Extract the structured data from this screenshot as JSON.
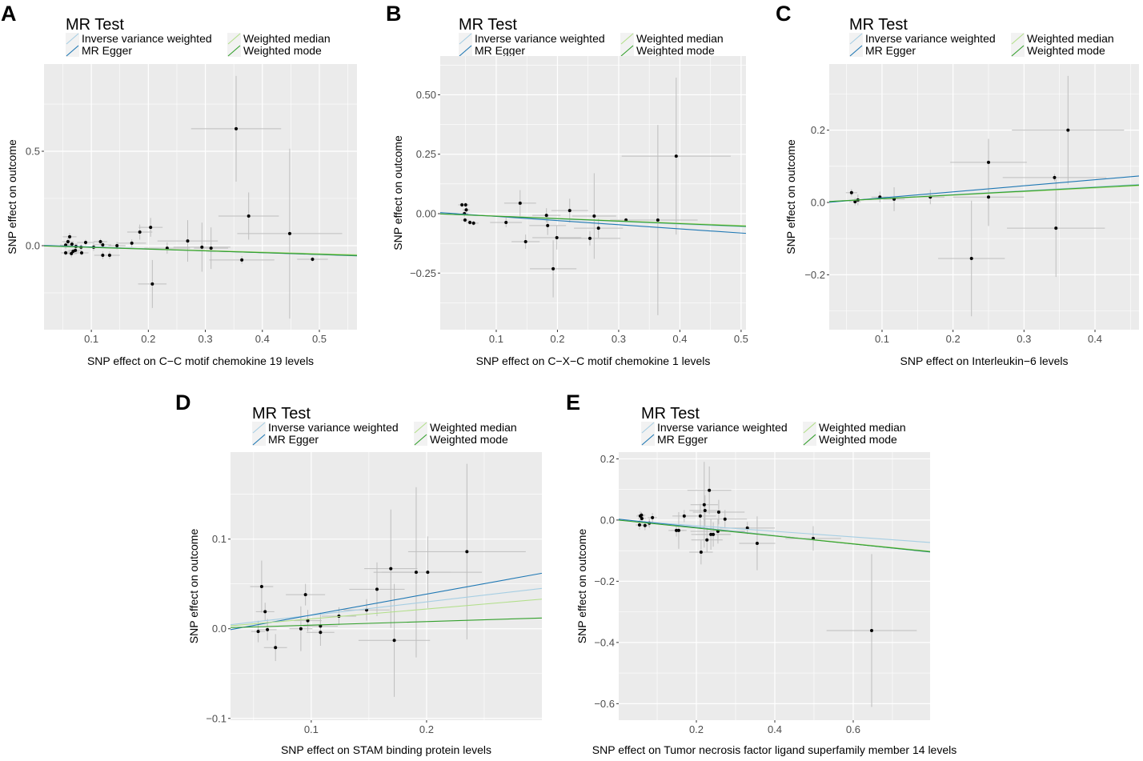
{
  "legend": {
    "title": "MR Test",
    "items": [
      {
        "label": "Inverse variance weighted",
        "color": "#a6cee3"
      },
      {
        "label": "MR Egger",
        "color": "#1f78b4"
      },
      {
        "label": "Weighted median",
        "color": "#b2df8a"
      },
      {
        "label": "Weighted mode",
        "color": "#33a02c"
      }
    ]
  },
  "colors": {
    "points": "#000000",
    "error_bars": "#bebebe",
    "panel_background": "#ebebeb",
    "gridlines": "#ffffff",
    "tick_marks": "#333333"
  },
  "chart_data": [
    {
      "panel_label": "A",
      "type": "scatter",
      "xlabel": "SNP effect on C−C motif chemokine 19 levels",
      "ylabel": "SNP effect on outcome",
      "xlim": [
        0.017,
        0.566
      ],
      "ylim": [
        -0.445,
        0.962
      ],
      "xticks": [
        0.1,
        0.2,
        0.3,
        0.4,
        0.5
      ],
      "xtick_labels": [
        "0.1",
        "0.2",
        "0.3",
        "0.4",
        "0.5"
      ],
      "yticks": [
        0.0,
        0.5
      ],
      "ytick_labels": [
        "0.0",
        "0.5"
      ],
      "points": [
        [
          0.354,
          0.619,
          0.079,
          0.28
        ],
        [
          0.376,
          0.157,
          0.053,
          0.125
        ],
        [
          0.448,
          0.064,
          0.092,
          0.45
        ],
        [
          0.488,
          -0.072,
          0.027,
          0.012
        ],
        [
          0.364,
          -0.076,
          0.057,
          0.02
        ],
        [
          0.207,
          -0.203,
          0.025,
          0.127
        ],
        [
          0.204,
          0.097,
          0.021,
          0.05
        ],
        [
          0.185,
          0.072,
          0.022,
          0.04
        ],
        [
          0.171,
          0.013,
          0.025,
          0.02
        ],
        [
          0.269,
          0.025,
          0.053,
          0.11
        ],
        [
          0.233,
          -0.013,
          0.04,
          0.03
        ],
        [
          0.294,
          -0.008,
          0.05,
          0.13
        ],
        [
          0.31,
          -0.013,
          0.03,
          0.11
        ],
        [
          0.145,
          0.0,
          0.015,
          0.02
        ],
        [
          0.132,
          -0.051,
          0.018,
          0.02
        ],
        [
          0.12,
          -0.051,
          0.015,
          0.02
        ],
        [
          0.116,
          0.021,
          0.012,
          0.015
        ],
        [
          0.12,
          0.004,
          0.015,
          0.015
        ],
        [
          0.104,
          -0.008,
          0.02,
          0.02
        ],
        [
          0.09,
          0.017,
          0.015,
          0.015
        ],
        [
          0.055,
          0.003,
          0.01,
          0.02
        ],
        [
          0.055,
          -0.038,
          0.008,
          0.015
        ],
        [
          0.059,
          0.021,
          0.01,
          0.02
        ],
        [
          0.062,
          0.047,
          0.012,
          0.02
        ],
        [
          0.065,
          -0.042,
          0.01,
          0.02
        ],
        [
          0.068,
          -0.03,
          0.01,
          0.015
        ],
        [
          0.072,
          -0.025,
          0.012,
          0.015
        ],
        [
          0.073,
          -0.004,
          0.012,
          0.015
        ],
        [
          0.066,
          0.008,
          0.01,
          0.015
        ],
        [
          0.083,
          -0.038,
          0.012,
          0.015
        ],
        [
          0.082,
          -0.008,
          0.012,
          0.015
        ]
      ],
      "lines": [
        {
          "intercept": 0,
          "slope": -0.09
        },
        {
          "intercept": 0.003,
          "slope": -0.1
        },
        {
          "intercept": 0,
          "slope": -0.085
        },
        {
          "intercept": 0,
          "slope": -0.092
        }
      ]
    },
    {
      "panel_label": "B",
      "type": "scatter",
      "xlabel": "SNP effect on C−X−C motif chemokine 1 levels",
      "ylabel": "SNP effect on outcome",
      "xlim": [
        0.0085,
        0.508
      ],
      "ylim": [
        -0.488,
        0.663
      ],
      "xticks": [
        0.1,
        0.2,
        0.3,
        0.4,
        0.5
      ],
      "xtick_labels": [
        "0.1",
        "0.2",
        "0.3",
        "0.4",
        "0.5"
      ],
      "yticks": [
        -0.25,
        0.0,
        0.25,
        0.5
      ],
      "ytick_labels": [
        "−0.25",
        "0.00",
        "0.25",
        "0.50"
      ],
      "points": [
        [
          0.394,
          0.242,
          0.089,
          0.33
        ],
        [
          0.364,
          -0.027,
          0.065,
          0.4
        ],
        [
          0.312,
          -0.027,
          0.026,
          0.01
        ],
        [
          0.26,
          -0.01,
          0.036,
          0.18
        ],
        [
          0.267,
          -0.061,
          0.04,
          0.04
        ],
        [
          0.253,
          -0.104,
          0.05,
          0.03
        ],
        [
          0.22,
          0.013,
          0.03,
          0.05
        ],
        [
          0.199,
          -0.101,
          0.04,
          0.05
        ],
        [
          0.184,
          -0.05,
          0.03,
          0.04
        ],
        [
          0.182,
          -0.007,
          0.023,
          0.03
        ],
        [
          0.193,
          -0.232,
          0.038,
          0.12
        ],
        [
          0.148,
          -0.118,
          0.023,
          0.03
        ],
        [
          0.139,
          0.044,
          0.026,
          0.055
        ],
        [
          0.116,
          -0.037,
          0.026,
          0.02
        ],
        [
          0.044,
          0.037,
          0.006,
          0.01
        ],
        [
          0.05,
          0.037,
          0.006,
          0.01
        ],
        [
          0.051,
          0.016,
          0.006,
          0.012
        ],
        [
          0.048,
          0.0,
          0.006,
          0.012
        ],
        [
          0.049,
          -0.027,
          0.006,
          0.012
        ],
        [
          0.057,
          -0.037,
          0.006,
          0.01
        ],
        [
          0.063,
          -0.04,
          0.008,
          0.01
        ]
      ],
      "lines": [
        {
          "intercept": 0,
          "slope": -0.11
        },
        {
          "intercept": 0.006,
          "slope": -0.175
        },
        {
          "intercept": 0,
          "slope": -0.1
        },
        {
          "intercept": 0,
          "slope": -0.105
        }
      ]
    },
    {
      "panel_label": "C",
      "type": "scatter",
      "xlabel": "SNP effect on Interleukin−6 levels",
      "ylabel": "SNP effect on outcome",
      "xlim": [
        0.0256,
        0.462
      ],
      "ylim": [
        -0.352,
        0.383
      ],
      "xticks": [
        0.1,
        0.2,
        0.3,
        0.4
      ],
      "xtick_labels": [
        "0.1",
        "0.2",
        "0.3",
        "0.4"
      ],
      "yticks": [
        -0.2,
        0.0,
        0.2
      ],
      "ytick_labels": [
        "−0.2",
        "0.0",
        "0.2"
      ],
      "points": [
        [
          0.362,
          0.2,
          0.079,
          0.15
        ],
        [
          0.343,
          0.069,
          0.073,
          0.01
        ],
        [
          0.345,
          -0.071,
          0.069,
          0.135
        ],
        [
          0.25,
          0.111,
          0.054,
          0.065
        ],
        [
          0.25,
          0.015,
          0.05,
          0.08
        ],
        [
          0.226,
          -0.155,
          0.047,
          0.16
        ],
        [
          0.168,
          0.015,
          0.02,
          0.02
        ],
        [
          0.117,
          0.009,
          0.015,
          0.033
        ],
        [
          0.097,
          0.015,
          0.012,
          0.015
        ],
        [
          0.057,
          0.027,
          0.008,
          0.01
        ],
        [
          0.062,
          0.002,
          0.008,
          0.01
        ],
        [
          0.066,
          0.007,
          0.008,
          0.015
        ]
      ],
      "lines": [
        {
          "intercept": 0,
          "slope": 0.108
        },
        {
          "intercept": -0.004,
          "slope": 0.167
        },
        {
          "intercept": 0,
          "slope": 0.1
        },
        {
          "intercept": 0,
          "slope": 0.104
        }
      ]
    },
    {
      "panel_label": "D",
      "type": "scatter",
      "xlabel": "SNP effect on STAM binding protein levels",
      "ylabel": "SNP effect on outcome",
      "xlim": [
        0.03,
        0.3
      ],
      "ylim": [
        -0.102,
        0.197
      ],
      "xticks": [
        0.1,
        0.2
      ],
      "xtick_labels": [
        "0.1",
        "0.2"
      ],
      "yticks": [
        -0.1,
        0.0,
        0.1
      ],
      "ytick_labels": [
        "−0.1",
        "0.0",
        "0.1"
      ],
      "points": [
        [
          0.235,
          0.086,
          0.051,
          0.098
        ],
        [
          0.201,
          0.063,
          0.047,
          0.04
        ],
        [
          0.191,
          0.063,
          0.03,
          0.095
        ],
        [
          0.169,
          0.067,
          0.023,
          0.066
        ],
        [
          0.157,
          0.044,
          0.024,
          0.03
        ],
        [
          0.148,
          0.021,
          0.02,
          0.012
        ],
        [
          0.172,
          -0.013,
          0.031,
          0.063
        ],
        [
          0.124,
          0.014,
          0.015,
          0.01
        ],
        [
          0.108,
          0.003,
          0.015,
          0.015
        ],
        [
          0.108,
          -0.004,
          0.012,
          0.015
        ],
        [
          0.097,
          0.009,
          0.012,
          0.012
        ],
        [
          0.095,
          0.038,
          0.017,
          0.012
        ],
        [
          0.091,
          0.0,
          0.01,
          0.025
        ],
        [
          0.069,
          -0.021,
          0.01,
          0.015
        ],
        [
          0.062,
          -0.001,
          0.008,
          0.012
        ],
        [
          0.06,
          0.019,
          0.008,
          0.01
        ],
        [
          0.057,
          0.047,
          0.01,
          0.029
        ],
        [
          0.054,
          -0.003,
          0.006,
          0.012
        ]
      ],
      "lines": [
        {
          "intercept": 0,
          "slope": 0.15
        },
        {
          "intercept": -0.008,
          "slope": 0.233
        },
        {
          "intercept": 0,
          "slope": 0.11
        },
        {
          "intercept": 0,
          "slope": 0.04
        }
      ]
    },
    {
      "panel_label": "E",
      "type": "scatter",
      "xlabel": "SNP effect on Tumor necrosis factor ligand superfamily member 14 levels",
      "ylabel": "SNP effect on outcome",
      "xlim": [
        0.002,
        0.796
      ],
      "ylim": [
        -0.654,
        0.222
      ],
      "xticks": [
        0.2,
        0.4,
        0.6
      ],
      "xtick_labels": [
        "0.2",
        "0.4",
        "0.6"
      ],
      "yticks": [
        -0.6,
        -0.4,
        -0.2,
        0.0,
        0.2
      ],
      "ytick_labels": [
        "−0.6",
        "−0.4",
        "−0.2",
        "0.0",
        "0.2"
      ],
      "points": [
        [
          0.647,
          -0.361,
          0.115,
          0.25
        ],
        [
          0.498,
          -0.06,
          0.071,
          0.04
        ],
        [
          0.355,
          -0.076,
          0.046,
          0.088
        ],
        [
          0.33,
          -0.026,
          0.07,
          0.02
        ],
        [
          0.273,
          0.003,
          0.056,
          0.03
        ],
        [
          0.257,
          0.026,
          0.066,
          0.04
        ],
        [
          0.255,
          -0.037,
          0.07,
          0.04
        ],
        [
          0.233,
          0.097,
          0.056,
          0.078
        ],
        [
          0.222,
          0.031,
          0.04,
          0.05
        ],
        [
          0.22,
          0.05,
          0.035,
          0.14
        ],
        [
          0.21,
          0.013,
          0.04,
          0.04
        ],
        [
          0.212,
          -0.105,
          0.03,
          0.04
        ],
        [
          0.237,
          -0.047,
          0.05,
          0.05
        ],
        [
          0.243,
          -0.047,
          0.045,
          0.04
        ],
        [
          0.227,
          -0.065,
          0.04,
          0.04
        ],
        [
          0.169,
          0.013,
          0.03,
          0.02
        ],
        [
          0.155,
          -0.034,
          0.02,
          0.06
        ],
        [
          0.149,
          -0.034,
          0.02,
          0.02
        ],
        [
          0.088,
          0.008,
          0.012,
          0.015
        ],
        [
          0.08,
          -0.01,
          0.012,
          0.015
        ],
        [
          0.069,
          -0.018,
          0.01,
          0.015
        ],
        [
          0.057,
          0.013,
          0.01,
          0.015
        ],
        [
          0.055,
          -0.016,
          0.01,
          0.015
        ],
        [
          0.061,
          0.005,
          0.01,
          0.015
        ],
        [
          0.06,
          0.016,
          0.01,
          0.01
        ]
      ],
      "lines": [
        {
          "intercept": 0,
          "slope": -0.092
        },
        {
          "intercept": 0.003,
          "slope": -0.135
        },
        {
          "intercept": 0,
          "slope": -0.128
        },
        {
          "intercept": 0,
          "slope": -0.13
        }
      ]
    }
  ]
}
